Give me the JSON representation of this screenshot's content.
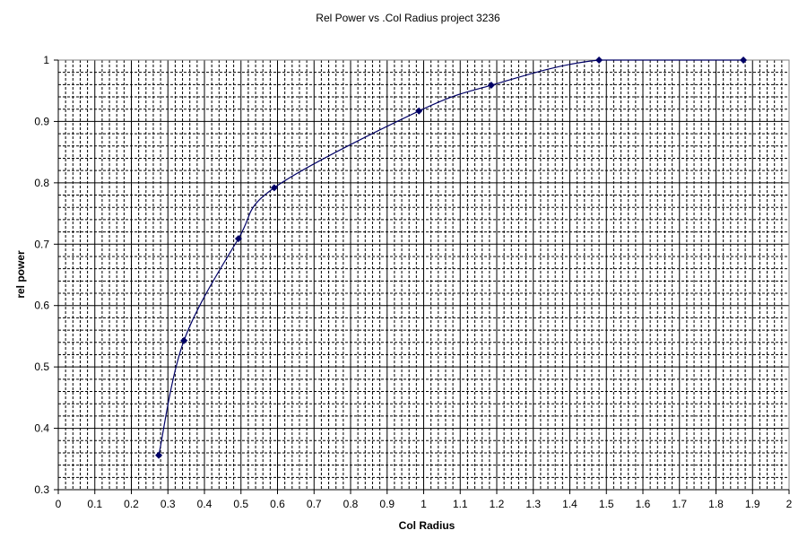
{
  "chart_data": {
    "type": "line",
    "title": "Rel Power vs .Col Radius project 3236",
    "xlabel": "Col Radius",
    "ylabel": "rel power",
    "xlim": [
      0,
      2
    ],
    "ylim": [
      0.3,
      1
    ],
    "x_ticks": [
      "0",
      "0.1",
      "0.2",
      "0.3",
      "0.4",
      "0.5",
      "0.6",
      "0.7",
      "0.8",
      "0.9",
      "1",
      "1.1",
      "1.2",
      "1.3",
      "1.4",
      "1.5",
      "1.6",
      "1.7",
      "1.8",
      "1.9",
      "2"
    ],
    "y_ticks": [
      "0.3",
      "0.4",
      "0.5",
      "0.6",
      "0.7",
      "0.8",
      "0.9",
      "1"
    ],
    "grid": true,
    "smoothed": true,
    "marker": "diamond",
    "series_color": "#000066",
    "points": [
      {
        "x": 0.275,
        "y": 0.356
      },
      {
        "x": 0.344,
        "y": 0.543
      },
      {
        "x": 0.493,
        "y": 0.709
      },
      {
        "x": 0.591,
        "y": 0.792
      },
      {
        "x": 0.987,
        "y": 0.917
      },
      {
        "x": 1.185,
        "y": 0.959
      },
      {
        "x": 1.48,
        "y": 1.0
      },
      {
        "x": 1.875,
        "y": 1.0
      }
    ]
  }
}
